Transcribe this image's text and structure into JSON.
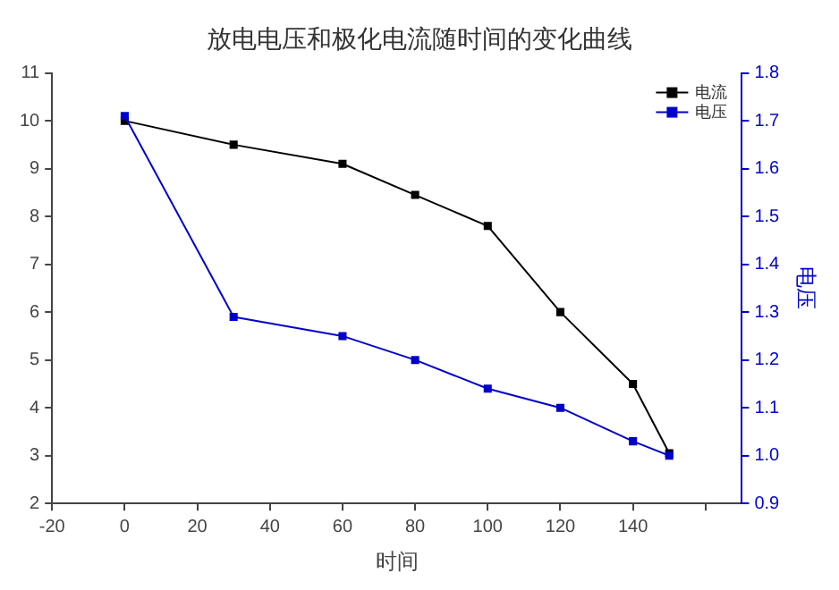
{
  "chart_data": {
    "type": "line",
    "title": "放电电压和极化电流随时间的变化曲线",
    "xlabel": "时间",
    "y2label": "电压",
    "x": [
      0,
      30,
      60,
      80,
      100,
      120,
      140,
      150
    ],
    "series": [
      {
        "name": "电流",
        "color": "#000000",
        "values": [
          10.0,
          9.5,
          9.1,
          8.45,
          7.8,
          6.0,
          4.5,
          3.05
        ]
      },
      {
        "name": "电压",
        "color": "#0000cc",
        "axis": "y2",
        "values": [
          1.71,
          1.29,
          1.25,
          1.2,
          1.14,
          1.1,
          1.03,
          1.0
        ]
      }
    ],
    "xlim": [
      -20,
      170
    ],
    "xticks": [
      -20,
      0,
      20,
      40,
      60,
      80,
      100,
      120,
      140,
      {
        "value": 160,
        "label": null
      }
    ],
    "ylim": [
      2,
      11
    ],
    "yticks": [
      2,
      3,
      4,
      5,
      6,
      7,
      8,
      9,
      10,
      11
    ],
    "y2lim": [
      0.9,
      1.8
    ],
    "y2ticks": [
      0.9,
      {
        "value": 1.0,
        "label": "1.0"
      },
      1.1,
      1.2,
      1.3,
      1.4,
      1.5,
      1.6,
      1.7,
      1.8
    ],
    "marker": "square",
    "grid": false,
    "legend": "top right"
  }
}
